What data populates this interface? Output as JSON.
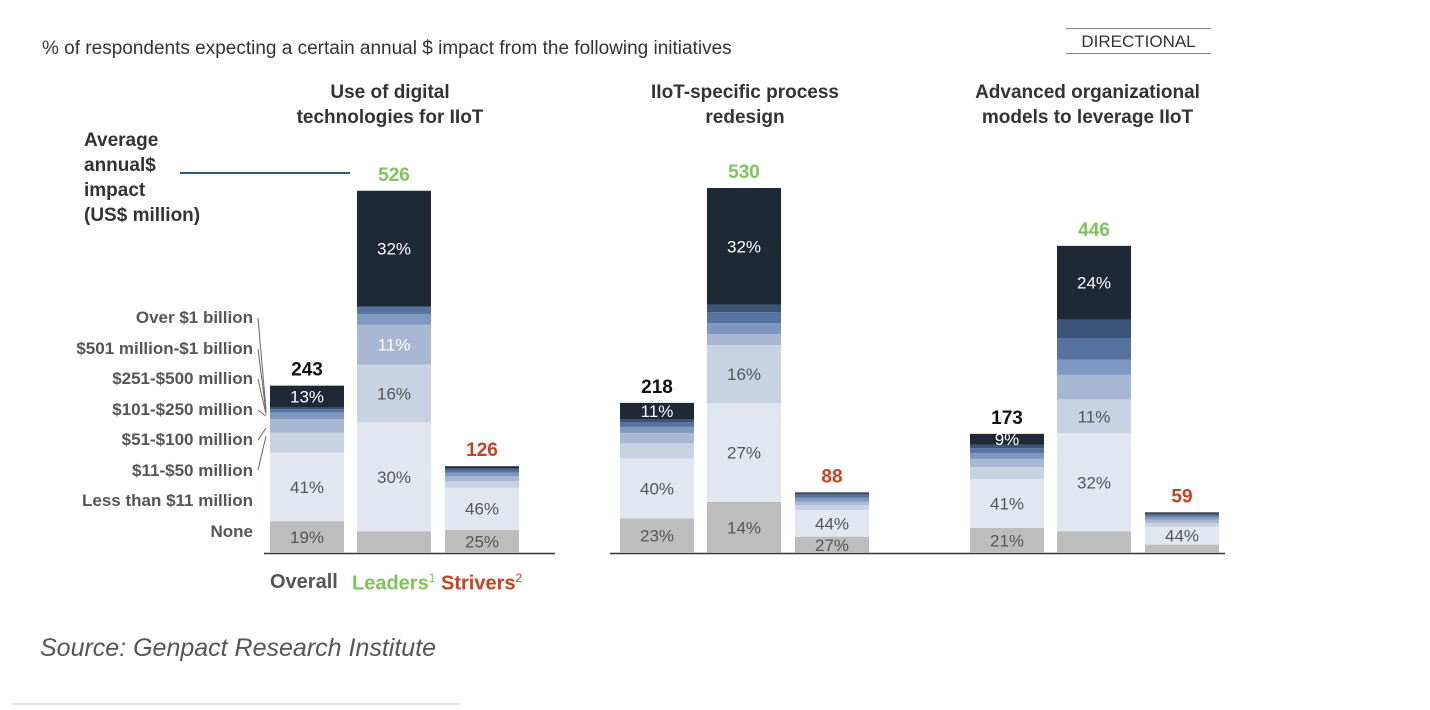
{
  "header": {
    "subtitle": "% of respondents expecting a certain annual $ impact from the following initiatives",
    "badge": "DIRECTIONAL"
  },
  "avg_label": [
    "Average",
    "annual$",
    "impact",
    "(US$ million)"
  ],
  "legend_labels": [
    "Over $1 billion",
    "$501 million-$1 billion",
    "$251-$500 million",
    "$101-$250 million",
    "$51-$100 million",
    "$11-$50 million",
    "Less than $11 million",
    "None"
  ],
  "category_labels": {
    "overall": "Overall",
    "leaders": "Leaders",
    "leaders_sup": "1",
    "strivers": "Strivers",
    "strivers_sup": "2"
  },
  "source": "Source: Genpact Research Institute",
  "colors": {
    "segments": [
      "#bdbdbd",
      "#e1e6ef",
      "#c7d2e3",
      "#a9b8d2",
      "#7f98c2",
      "#56739f",
      "#3c5378",
      "#1f2835"
    ],
    "overall_total": "#111111",
    "leaders_total": "#7dc55a",
    "strivers_total": "#c8401f"
  },
  "chart_data": {
    "type": "bar",
    "stacked": true,
    "title": "% of respondents expecting a certain annual $ impact from the following initiatives",
    "stack_order_bottom_to_top": [
      "None",
      "Less than $11 million",
      "$11-$50 million",
      "$51-$100 million",
      "$101-$250 million",
      "$251-$500 million",
      "$501 million-$1 billion",
      "Over $1 billion"
    ],
    "note": "Bar height proportional to average annual $ impact (US$ million); segments show % of respondents. Unlabeled segment values are estimates.",
    "groups": [
      {
        "title": "Use of digital technologies for IIoT",
        "bars": [
          {
            "name": "Overall",
            "total": 243,
            "segments": [
              19,
              41,
              12,
              8,
              4,
              2,
              1,
              13
            ],
            "labels": [
              "19%",
              "41%",
              "",
              "",
              "",
              "",
              "",
              "13%"
            ]
          },
          {
            "name": "Leaders",
            "total": 526,
            "segments": [
              6,
              30,
              16,
              11,
              3,
              2,
              0,
              32
            ],
            "labels": [
              "",
              "30%",
              "16%",
              "11%",
              "",
              "",
              "",
              "32%"
            ]
          },
          {
            "name": "Strivers",
            "total": 126,
            "segments": [
              25,
              46,
              7,
              5,
              4,
              3,
              2,
              2
            ],
            "labels": [
              "25%",
              "46%",
              "",
              "",
              "",
              "",
              "",
              ""
            ]
          }
        ]
      },
      {
        "title": "IIoT-specific process redesign",
        "bars": [
          {
            "name": "Overall",
            "total": 218,
            "segments": [
              23,
              40,
              10,
              7,
              4,
              3,
              2,
              11
            ],
            "labels": [
              "23%",
              "40%",
              "",
              "",
              "",
              "",
              "",
              "11%"
            ]
          },
          {
            "name": "Leaders",
            "total": 530,
            "segments": [
              14,
              27,
              16,
              3,
              3,
              3,
              2,
              32
            ],
            "labels": [
              "14%",
              "27%",
              "16%",
              "",
              "",
              "",
              "",
              "32%"
            ]
          },
          {
            "name": "Strivers",
            "total": 88,
            "segments": [
              27,
              44,
              8,
              6,
              6,
              5,
              2,
              2
            ],
            "labels": [
              "27%",
              "44%",
              "",
              "",
              "",
              "",
              "",
              ""
            ]
          }
        ]
      },
      {
        "title": "Advanced organizational models to leverage IIoT",
        "bars": [
          {
            "name": "Overall",
            "total": 173,
            "segments": [
              21,
              41,
              10,
              7,
              5,
              4,
              3,
              9
            ],
            "labels": [
              "21%",
              "41%",
              "",
              "",
              "",
              "",
              "",
              "9%"
            ]
          },
          {
            "name": "Leaders",
            "total": 446,
            "segments": [
              7,
              32,
              11,
              8,
              5,
              7,
              6,
              24
            ],
            "labels": [
              "",
              "32%",
              "11%",
              "",
              "",
              "",
              "",
              "24%"
            ]
          },
          {
            "name": "Strivers",
            "total": 59,
            "segments": [
              21,
              44,
              9,
              8,
              7,
              5,
              3,
              3
            ],
            "labels": [
              "",
              "44%",
              "",
              "",
              "",
              "",
              "",
              ""
            ]
          }
        ]
      }
    ]
  }
}
